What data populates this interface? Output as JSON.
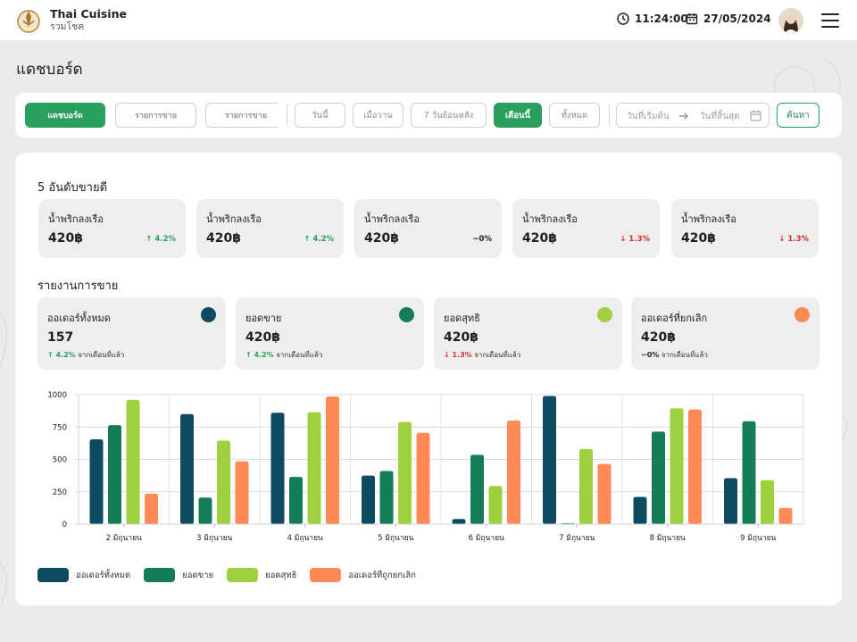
{
  "header": {
    "brand_name": "Thai Cuisine",
    "brand_sub": "รวมโชค",
    "time": "11:24:00",
    "date": "27/05/2024"
  },
  "page": {
    "title": "แดชบอร์ด"
  },
  "filters": {
    "tabs": [
      "แดชบอร์ด",
      "รายการขาย",
      "รายการขาย"
    ],
    "periods": [
      "วันนี้",
      "เมื่อวาน",
      "7 วันย้อนหลัง",
      "เดือนนี้",
      "ทั้งหมด"
    ],
    "start_placeholder": "วันที่เริ่มต้น",
    "end_placeholder": "วันที่สิ้นสุด",
    "search_label": "ค้นหา"
  },
  "top5": {
    "title": "5 อันดับขายดี",
    "items": [
      {
        "name": "น้ำพริกลงเรือ",
        "value": "420฿",
        "change": "↑ 4.2%",
        "trend": "up"
      },
      {
        "name": "น้ำพริกลงเรือ",
        "value": "420฿",
        "change": "↑ 4.2%",
        "trend": "up"
      },
      {
        "name": "น้ำพริกลงเรือ",
        "value": "420฿",
        "change": "~0%",
        "trend": "flat"
      },
      {
        "name": "น้ำพริกลงเรือ",
        "value": "420฿",
        "change": "↓ 1.3%",
        "trend": "down"
      },
      {
        "name": "น้ำพริกลงเรือ",
        "value": "420฿",
        "change": "↓ 1.3%",
        "trend": "down"
      }
    ]
  },
  "report": {
    "title": "รายงานการขาย",
    "cards": [
      {
        "name": "ออเดอร์ทั้งหมด",
        "value": "157",
        "change": "↑ 4.2%",
        "trend": "up",
        "suffix": "จากเดือนที่แล้ว",
        "color": "#0e4a60"
      },
      {
        "name": "ยอดขาย",
        "value": "420฿",
        "change": "↑ 4.2%",
        "trend": "up",
        "suffix": "จากเดือนที่แล้ว",
        "color": "#147c57"
      },
      {
        "name": "ยอดสุทธิ",
        "value": "420฿",
        "change": "↓ 1.3%",
        "trend": "down",
        "suffix": "จากเดือนที่แล้ว",
        "color": "#9fd040"
      },
      {
        "name": "ออเดอร์ที่ยกเลิก",
        "value": "420฿",
        "change": "~0%",
        "trend": "flat",
        "suffix": "จากเดือนที่แล้ว",
        "color": "#ff8a55"
      }
    ]
  },
  "chart_data": {
    "type": "bar",
    "categories": [
      "2 มิถุนายน",
      "3 มิถุนายน",
      "4 มิถุนายน",
      "5 มิถุนายน",
      "6 มิถุนายน",
      "7 มิถุนายน",
      "8 มิถุนายน",
      "9 มิถุนายน"
    ],
    "series": [
      {
        "name": "ออเดอร์ทั้งหมด",
        "color": "#0e4a60",
        "values": [
          655,
          850,
          860,
          375,
          40,
          990,
          210,
          355
        ]
      },
      {
        "name": "ยอดขาย",
        "color": "#147c57",
        "values": [
          765,
          205,
          365,
          410,
          535,
          5,
          715,
          795
        ]
      },
      {
        "name": "ยอดสุทธิ",
        "color": "#9fd040",
        "values": [
          960,
          645,
          865,
          790,
          295,
          580,
          895,
          340
        ]
      },
      {
        "name": "ออเดอร์ที่ถูกยกเลิก",
        "color": "#ff8a55",
        "values": [
          235,
          485,
          985,
          705,
          800,
          465,
          885,
          125
        ]
      }
    ],
    "ylim": [
      0,
      1000
    ],
    "yticks": [
      0,
      250,
      500,
      750,
      1000
    ],
    "grid": true,
    "legend": "bottom-left",
    "xlabel": "",
    "ylabel": ""
  },
  "colors": {
    "accent": "#2aa05e",
    "up": "#2aa05e",
    "down": "#d32f2f"
  }
}
